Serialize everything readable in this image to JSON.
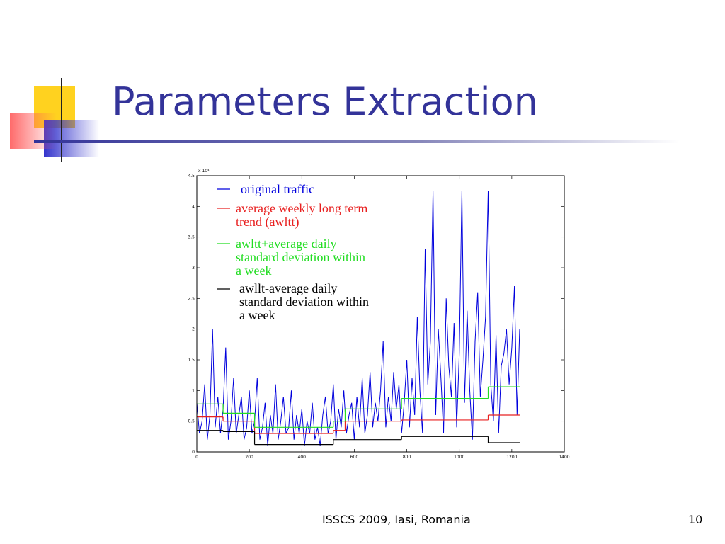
{
  "slide": {
    "title": "Parameters Extraction",
    "footer": "ISSCS 2009, Iasi, Romania",
    "page_number": "10"
  },
  "chart_data": {
    "type": "line",
    "y_multiplier": "x 10⁴",
    "xlim": [
      0,
      1400
    ],
    "xticks": [
      0,
      200,
      400,
      600,
      800,
      1000,
      1200,
      1400
    ],
    "ylim": [
      0,
      4.5
    ],
    "yticks": [
      0,
      0.5,
      1,
      1.5,
      2,
      2.5,
      3,
      3.5,
      4,
      4.5
    ],
    "series": [
      {
        "name": "original traffic",
        "color": "#0000dd",
        "x": [
          0,
          10,
          20,
          30,
          40,
          50,
          60,
          70,
          80,
          90,
          100,
          110,
          120,
          130,
          140,
          150,
          160,
          170,
          180,
          190,
          200,
          210,
          220,
          230,
          240,
          250,
          260,
          270,
          280,
          290,
          300,
          310,
          320,
          330,
          340,
          350,
          360,
          370,
          380,
          390,
          400,
          410,
          420,
          430,
          440,
          450,
          460,
          470,
          480,
          490,
          500,
          510,
          520,
          530,
          540,
          550,
          560,
          570,
          580,
          590,
          600,
          610,
          620,
          630,
          640,
          650,
          660,
          670,
          680,
          690,
          700,
          710,
          720,
          730,
          740,
          750,
          760,
          770,
          780,
          790,
          800,
          810,
          820,
          830,
          840,
          850,
          860,
          870,
          880,
          890,
          900,
          910,
          920,
          930,
          940,
          950,
          960,
          970,
          980,
          990,
          1000,
          1010,
          1020,
          1030,
          1040,
          1050,
          1060,
          1070,
          1080,
          1090,
          1100,
          1110,
          1120,
          1130,
          1140,
          1150,
          1160,
          1170,
          1180,
          1190,
          1200,
          1210,
          1220,
          1230
        ],
        "values": [
          0.8,
          0.3,
          0.5,
          1.1,
          0.2,
          0.6,
          2.0,
          0.4,
          0.9,
          0.3,
          0.7,
          1.7,
          0.2,
          0.5,
          1.2,
          0.3,
          0.6,
          0.9,
          0.2,
          0.4,
          1.0,
          0.3,
          0.5,
          1.2,
          0.2,
          0.4,
          0.8,
          0.1,
          0.6,
          0.3,
          1.1,
          0.2,
          0.5,
          0.9,
          0.3,
          0.4,
          1.0,
          0.2,
          0.6,
          0.3,
          0.7,
          0.1,
          0.5,
          0.3,
          0.8,
          0.2,
          0.4,
          0.1,
          0.6,
          0.9,
          0.3,
          0.5,
          1.1,
          0.2,
          0.7,
          0.4,
          1.0,
          0.3,
          0.6,
          0.8,
          0.2,
          0.9,
          0.4,
          1.2,
          0.3,
          0.6,
          1.3,
          0.4,
          0.8,
          0.5,
          1.0,
          1.8,
          0.4,
          0.9,
          0.5,
          1.3,
          0.7,
          1.1,
          0.3,
          0.8,
          1.5,
          0.4,
          1.2,
          0.6,
          2.2,
          1.0,
          0.3,
          3.3,
          1.1,
          1.8,
          4.25,
          0.6,
          2.0,
          1.2,
          0.3,
          2.5,
          1.4,
          0.9,
          2.1,
          0.4,
          1.6,
          4.25,
          0.8,
          2.3,
          1.0,
          0.2,
          1.8,
          2.6,
          0.9,
          1.5,
          2.2,
          4.25,
          1.1,
          0.5,
          1.9,
          0.3,
          1.4,
          1.6,
          2.0,
          1.1,
          1.7,
          2.7,
          0.6,
          2.0
        ]
      },
      {
        "name": "average weekly long term trend (awltt)",
        "color": "#e82020",
        "drawstyle": "steps",
        "bins": [
          0,
          100,
          220,
          520,
          565,
          780,
          1110,
          1230
        ],
        "values": [
          0.57,
          0.5,
          0.3,
          0.35,
          0.5,
          0.52,
          0.6
        ]
      },
      {
        "name": "awltt+average daily standard deviation within a week",
        "color": "#22dd22",
        "drawstyle": "steps",
        "bins": [
          0,
          100,
          220,
          520,
          565,
          780,
          1110,
          1230
        ],
        "values": [
          0.78,
          0.63,
          0.4,
          0.5,
          0.7,
          0.87,
          1.06
        ]
      },
      {
        "name": "awllt-average daily standard deviation within a week",
        "color": "#000000",
        "drawstyle": "steps",
        "bins": [
          0,
          100,
          220,
          520,
          565,
          780,
          1110,
          1230
        ],
        "values": [
          0.35,
          0.33,
          0.12,
          0.2,
          0.2,
          0.25,
          0.15
        ]
      }
    ]
  }
}
